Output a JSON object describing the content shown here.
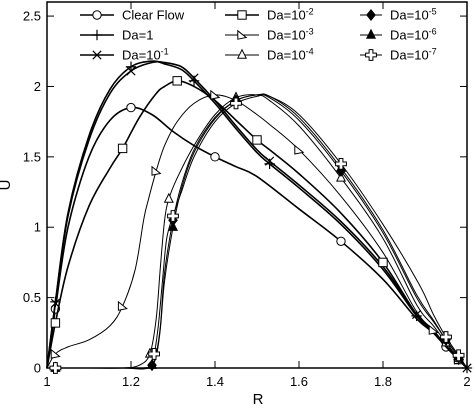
{
  "chart_data": {
    "type": "line",
    "xlabel": "R",
    "ylabel": "U",
    "xlim": [
      1,
      2
    ],
    "ylim": [
      0,
      2.6
    ],
    "x_ticks": [
      {
        "value": 1,
        "label": "1"
      },
      {
        "value": 1.2,
        "label": "1.2"
      },
      {
        "value": 1.4,
        "label": "1.4"
      },
      {
        "value": 1.6,
        "label": "1.6"
      },
      {
        "value": 1.8,
        "label": "1.8"
      },
      {
        "value": 2,
        "label": "2"
      }
    ],
    "y_ticks": [
      {
        "value": 0,
        "label": "0"
      },
      {
        "value": 0.5,
        "label": "0.5"
      },
      {
        "value": 1,
        "label": "1"
      },
      {
        "value": 1.5,
        "label": "1.5"
      },
      {
        "value": 2,
        "label": "2"
      },
      {
        "value": 2.5,
        "label": "2.5"
      }
    ],
    "grid": false,
    "legend_position": "top",
    "series": [
      {
        "name": "Clear Flow",
        "marker": "circle",
        "width": 1.6,
        "x": [
          1.0,
          1.02,
          1.05,
          1.1,
          1.15,
          1.2,
          1.25,
          1.3,
          1.35,
          1.4,
          1.45,
          1.5,
          1.6,
          1.7,
          1.8,
          1.88,
          1.92,
          1.95,
          1.98,
          2.0
        ],
        "y": [
          0.0,
          0.42,
          1.0,
          1.5,
          1.76,
          1.85,
          1.8,
          1.68,
          1.58,
          1.5,
          1.43,
          1.36,
          1.13,
          0.9,
          0.63,
          0.35,
          0.25,
          0.15,
          0.06,
          0.0
        ]
      },
      {
        "name": "Da=1",
        "marker": "plus",
        "width": 1.6,
        "x": [
          1.0,
          1.02,
          1.05,
          1.1,
          1.15,
          1.2,
          1.25,
          1.28,
          1.32,
          1.35,
          1.4,
          1.45,
          1.5,
          1.53,
          1.6,
          1.7,
          1.8,
          1.88,
          1.92,
          1.95,
          1.98,
          2.0
        ],
        "y": [
          0.0,
          0.47,
          1.1,
          1.65,
          1.98,
          2.14,
          2.18,
          2.16,
          2.12,
          2.04,
          1.88,
          1.7,
          1.53,
          1.45,
          1.28,
          1.02,
          0.7,
          0.37,
          0.25,
          0.15,
          0.06,
          0.0
        ]
      },
      {
        "name": "Da=10⁻¹",
        "marker": "x",
        "width": 1.6,
        "x": [
          1.0,
          1.02,
          1.05,
          1.1,
          1.15,
          1.2,
          1.25,
          1.28,
          1.32,
          1.35,
          1.4,
          1.45,
          1.5,
          1.53,
          1.6,
          1.7,
          1.8,
          1.88,
          1.92,
          1.95,
          1.98,
          2.0
        ],
        "y": [
          0.0,
          0.46,
          1.08,
          1.62,
          1.95,
          2.11,
          2.17,
          2.17,
          2.14,
          2.06,
          1.9,
          1.72,
          1.55,
          1.47,
          1.3,
          1.04,
          0.72,
          0.38,
          0.26,
          0.16,
          0.06,
          0.0
        ]
      },
      {
        "name": "Da=10⁻²",
        "marker": "square",
        "width": 1.6,
        "x": [
          1.0,
          1.02,
          1.05,
          1.1,
          1.15,
          1.18,
          1.22,
          1.26,
          1.28,
          1.31,
          1.35,
          1.4,
          1.45,
          1.5,
          1.53,
          1.6,
          1.7,
          1.8,
          1.88,
          1.92,
          1.95,
          1.98,
          2.0
        ],
        "y": [
          0.0,
          0.32,
          0.72,
          1.15,
          1.42,
          1.56,
          1.78,
          1.95,
          2.0,
          2.04,
          2.0,
          1.9,
          1.76,
          1.62,
          1.55,
          1.38,
          1.1,
          0.75,
          0.38,
          0.26,
          0.16,
          0.06,
          0.0
        ]
      },
      {
        "name": "Da=10⁻³",
        "marker": "triangle-right",
        "width": 1.0,
        "x": [
          1.0,
          1.02,
          1.05,
          1.1,
          1.15,
          1.18,
          1.21,
          1.23,
          1.24,
          1.26,
          1.28,
          1.31,
          1.35,
          1.4,
          1.45,
          1.5,
          1.53,
          1.6,
          1.7,
          1.8,
          1.88,
          1.92,
          1.95,
          1.98,
          2.0
        ],
        "y": [
          0.0,
          0.1,
          0.15,
          0.2,
          0.3,
          0.44,
          0.7,
          1.05,
          1.18,
          1.4,
          1.58,
          1.75,
          1.88,
          1.94,
          1.9,
          1.8,
          1.73,
          1.55,
          1.22,
          0.82,
          0.4,
          0.27,
          0.16,
          0.06,
          0.0
        ]
      },
      {
        "name": "Da=10⁻⁴",
        "marker": "triangle",
        "width": 1.0,
        "x": [
          1.0,
          1.02,
          1.1,
          1.18,
          1.22,
          1.245,
          1.26,
          1.27,
          1.28,
          1.29,
          1.31,
          1.35,
          1.4,
          1.45,
          1.5,
          1.53,
          1.6,
          1.7,
          1.8,
          1.88,
          1.92,
          1.95,
          1.98,
          2.0
        ],
        "y": [
          0.0,
          0.0,
          0.0,
          0.0,
          0.02,
          0.1,
          0.35,
          0.72,
          1.05,
          1.2,
          1.35,
          1.58,
          1.8,
          1.92,
          1.94,
          1.9,
          1.72,
          1.35,
          0.92,
          0.45,
          0.3,
          0.18,
          0.07,
          0.0
        ]
      },
      {
        "name": "Da=10⁻⁵",
        "marker": "diamond-filled",
        "width": 1.0,
        "x": [
          1.0,
          1.02,
          1.1,
          1.18,
          1.23,
          1.25,
          1.26,
          1.27,
          1.28,
          1.3,
          1.32,
          1.35,
          1.4,
          1.45,
          1.5,
          1.53,
          1.6,
          1.7,
          1.8,
          1.88,
          1.92,
          1.95,
          1.98,
          2.0
        ],
        "y": [
          0.0,
          0.0,
          0.0,
          0.0,
          0.0,
          0.02,
          0.1,
          0.3,
          0.68,
          1.05,
          1.3,
          1.55,
          1.78,
          1.9,
          1.94,
          1.92,
          1.76,
          1.4,
          0.96,
          0.5,
          0.33,
          0.2,
          0.08,
          0.0
        ]
      },
      {
        "name": "Da=10⁻⁶",
        "marker": "triangle-filled",
        "width": 1.0,
        "x": [
          1.0,
          1.02,
          1.1,
          1.18,
          1.24,
          1.25,
          1.26,
          1.27,
          1.28,
          1.3,
          1.32,
          1.35,
          1.4,
          1.45,
          1.5,
          1.53,
          1.6,
          1.7,
          1.8,
          1.88,
          1.92,
          1.95,
          1.98,
          2.0
        ],
        "y": [
          0.0,
          0.0,
          0.0,
          0.0,
          0.0,
          0.02,
          0.08,
          0.28,
          0.62,
          1.0,
          1.27,
          1.53,
          1.77,
          1.9,
          1.94,
          1.93,
          1.78,
          1.42,
          0.98,
          0.52,
          0.34,
          0.2,
          0.08,
          0.0
        ]
      },
      {
        "name": "Da=10⁻⁷",
        "marker": "cross-open",
        "width": 1.0,
        "x": [
          1.0,
          1.02,
          1.1,
          1.18,
          1.24,
          1.255,
          1.265,
          1.275,
          1.285,
          1.3,
          1.32,
          1.35,
          1.4,
          1.45,
          1.5,
          1.53,
          1.6,
          1.7,
          1.8,
          1.885,
          1.92,
          1.95,
          1.98,
          2.0
        ],
        "y": [
          0.0,
          0.0,
          0.0,
          0.0,
          0.0,
          0.1,
          0.3,
          0.62,
          0.92,
          1.08,
          1.25,
          1.5,
          1.75,
          1.88,
          1.93,
          1.93,
          1.8,
          1.45,
          1.02,
          0.6,
          0.38,
          0.22,
          0.09,
          0.0
        ]
      }
    ]
  }
}
